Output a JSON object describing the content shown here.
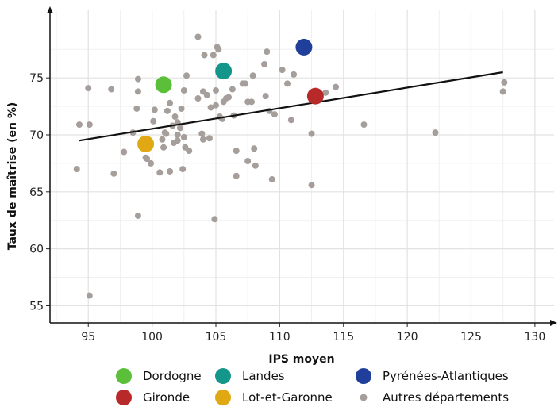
{
  "chart_data": {
    "type": "scatter",
    "xlabel": "IPS moyen",
    "ylabel": "Taux de maîtrise (en %)",
    "xlim": [
      92,
      131.5
    ],
    "ylim": [
      53.5,
      81
    ],
    "xticks": [
      95,
      100,
      105,
      110,
      115,
      120,
      125,
      130
    ],
    "yticks": [
      55,
      60,
      65,
      70,
      75
    ],
    "grid": true,
    "legend_position": "bottom",
    "trend_line": {
      "x": [
        94.3,
        127.5
      ],
      "y": [
        69.5,
        75.5
      ]
    },
    "highlight_series": [
      {
        "name": "Dordogne",
        "color": "#5cbf3a",
        "x": 100.9,
        "y": 74.4
      },
      {
        "name": "Gironde",
        "color": "#b82a2a",
        "x": 112.8,
        "y": 73.4
      },
      {
        "name": "Landes",
        "color": "#15968a",
        "x": 105.6,
        "y": 75.6
      },
      {
        "name": "Lot-et-Garonne",
        "color": "#e0a812",
        "x": 99.5,
        "y": 69.2
      },
      {
        "name": "Pyrénées-Atlantiques",
        "color": "#203f9a",
        "x": 111.9,
        "y": 77.7
      }
    ],
    "others": {
      "name": "Autres départements",
      "color": "#a59e9a",
      "points": [
        [
          94.1,
          67.0
        ],
        [
          94.3,
          70.9
        ],
        [
          95.0,
          74.1
        ],
        [
          95.1,
          70.9
        ],
        [
          95.1,
          55.9
        ],
        [
          96.8,
          74.0
        ],
        [
          97.0,
          66.6
        ],
        [
          97.8,
          68.5
        ],
        [
          98.5,
          70.2
        ],
        [
          98.8,
          72.3
        ],
        [
          98.9,
          73.8
        ],
        [
          98.9,
          74.9
        ],
        [
          98.9,
          62.9
        ],
        [
          99.5,
          68.0
        ],
        [
          99.6,
          67.9
        ],
        [
          99.9,
          67.5
        ],
        [
          100.1,
          71.2
        ],
        [
          100.2,
          72.2
        ],
        [
          100.6,
          66.7
        ],
        [
          100.8,
          69.6
        ],
        [
          100.9,
          68.9
        ],
        [
          101.0,
          70.2
        ],
        [
          101.1,
          70.1
        ],
        [
          101.2,
          72.1
        ],
        [
          101.4,
          72.8
        ],
        [
          101.4,
          66.8
        ],
        [
          101.6,
          70.8
        ],
        [
          101.7,
          69.3
        ],
        [
          101.8,
          71.6
        ],
        [
          102.0,
          71.1
        ],
        [
          102.0,
          70.0
        ],
        [
          102.0,
          69.5
        ],
        [
          102.2,
          70.6
        ],
        [
          102.3,
          72.3
        ],
        [
          102.4,
          67.0
        ],
        [
          102.5,
          69.8
        ],
        [
          102.6,
          68.9
        ],
        [
          102.7,
          75.2
        ],
        [
          102.5,
          73.9
        ],
        [
          102.9,
          68.6
        ],
        [
          103.6,
          73.2
        ],
        [
          103.6,
          78.6
        ],
        [
          103.9,
          70.1
        ],
        [
          104.0,
          69.6
        ],
        [
          104.0,
          73.8
        ],
        [
          104.1,
          77.0
        ],
        [
          104.3,
          73.5
        ],
        [
          104.5,
          69.7
        ],
        [
          104.6,
          72.4
        ],
        [
          104.9,
          62.6
        ],
        [
          104.8,
          77.0
        ],
        [
          105.0,
          73.9
        ],
        [
          105.0,
          72.6
        ],
        [
          105.1,
          77.7
        ],
        [
          105.2,
          77.5
        ],
        [
          105.3,
          71.6
        ],
        [
          105.5,
          71.4
        ],
        [
          105.6,
          72.9
        ],
        [
          105.8,
          73.2
        ],
        [
          106.0,
          73.3
        ],
        [
          106.3,
          74.0
        ],
        [
          106.4,
          71.7
        ],
        [
          106.6,
          68.6
        ],
        [
          106.6,
          66.4
        ],
        [
          107.1,
          74.5
        ],
        [
          107.3,
          74.5
        ],
        [
          107.5,
          72.9
        ],
        [
          107.5,
          67.7
        ],
        [
          107.8,
          72.9
        ],
        [
          107.9,
          75.2
        ],
        [
          108.1,
          67.3
        ],
        [
          108.0,
          68.8
        ],
        [
          108.8,
          76.2
        ],
        [
          108.9,
          73.4
        ],
        [
          109.0,
          77.3
        ],
        [
          109.2,
          72.1
        ],
        [
          109.4,
          66.1
        ],
        [
          109.6,
          71.8
        ],
        [
          110.2,
          75.7
        ],
        [
          110.6,
          74.5
        ],
        [
          110.9,
          71.3
        ],
        [
          111.1,
          75.3
        ],
        [
          112.5,
          70.1
        ],
        [
          112.5,
          65.6
        ],
        [
          113.0,
          73.6
        ],
        [
          113.6,
          73.7
        ],
        [
          114.4,
          74.2
        ],
        [
          116.6,
          70.9
        ],
        [
          122.2,
          70.2
        ],
        [
          127.5,
          73.8
        ],
        [
          127.6,
          74.6
        ]
      ]
    }
  }
}
